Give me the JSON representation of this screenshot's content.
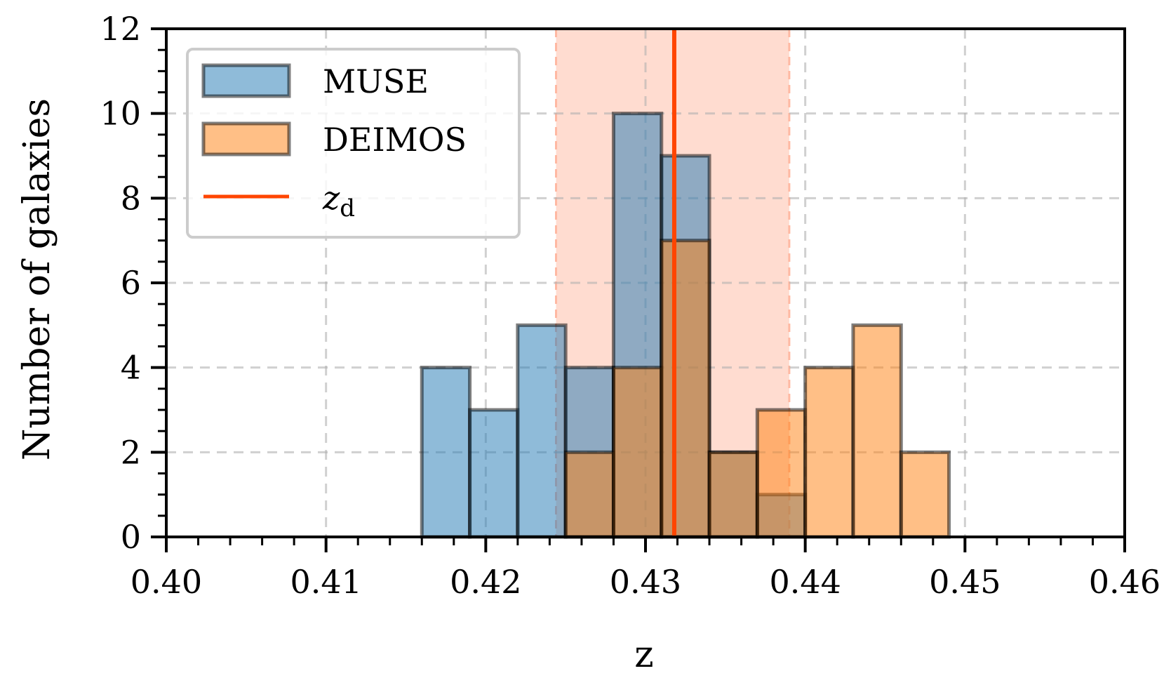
{
  "chart_data": {
    "type": "bar",
    "subtype": "histogram",
    "xlabel": "z",
    "ylabel": "Number of galaxies",
    "xlim": [
      0.4,
      0.46
    ],
    "ylim": [
      0,
      12
    ],
    "x_ticks": [
      "0.40",
      "0.41",
      "0.42",
      "0.43",
      "0.44",
      "0.45",
      "0.46"
    ],
    "x_tick_values": [
      0.4,
      0.41,
      0.42,
      0.43,
      0.44,
      0.45,
      0.46
    ],
    "y_ticks": [
      "0",
      "2",
      "4",
      "6",
      "8",
      "10",
      "12"
    ],
    "y_tick_values": [
      0,
      2,
      4,
      6,
      8,
      10,
      12
    ],
    "grid": true,
    "legend_position": "top-left",
    "bin_width": 0.003,
    "series": [
      {
        "name": "MUSE",
        "color": "#1f77b4",
        "bin_starts": [
          0.416,
          0.419,
          0.422,
          0.425,
          0.428,
          0.431,
          0.434,
          0.437
        ],
        "counts": [
          4,
          3,
          5,
          4,
          10,
          9,
          2,
          1
        ]
      },
      {
        "name": "DEIMOS",
        "color": "#ff7f0e",
        "bin_starts": [
          0.425,
          0.428,
          0.431,
          0.434,
          0.437,
          0.44,
          0.443,
          0.446
        ],
        "counts": [
          2,
          4,
          7,
          2,
          3,
          4,
          5,
          2
        ]
      }
    ],
    "reference_line": {
      "name": "z_d",
      "label_main": "z",
      "label_sub": "d",
      "x": 0.4318,
      "color": "#ff4500"
    },
    "band": {
      "x_range": [
        0.4244,
        0.439
      ],
      "color": "#ffdcd0"
    }
  }
}
